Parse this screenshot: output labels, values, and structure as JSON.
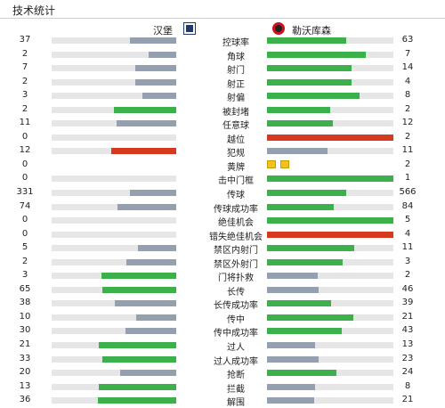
{
  "header": {
    "title": "技术统计"
  },
  "teams": {
    "home": "汉堡",
    "away": "勒沃库森"
  },
  "icons": {
    "home_logo": "hamburg-badge-icon",
    "away_logo": "leverkusen-badge-icon",
    "card": "yellow-card-icon"
  },
  "colors": {
    "win": "#3cb04a",
    "lose": "#94a0b0",
    "alert": "#d63a1e",
    "track": "#e6e6e6"
  },
  "stats": [
    {
      "label": "控球率",
      "home": "37",
      "away": "63",
      "h": 0.37,
      "a": 0.63,
      "hc": "lose",
      "ac": "win"
    },
    {
      "label": "角球",
      "home": "2",
      "away": "7",
      "h": 0.22,
      "a": 0.78,
      "hc": "lose",
      "ac": "win"
    },
    {
      "label": "射门",
      "home": "7",
      "away": "14",
      "h": 0.33,
      "a": 0.67,
      "hc": "lose",
      "ac": "win"
    },
    {
      "label": "射正",
      "home": "2",
      "away": "4",
      "h": 0.33,
      "a": 0.67,
      "hc": "lose",
      "ac": "win"
    },
    {
      "label": "射偏",
      "home": "3",
      "away": "8",
      "h": 0.27,
      "a": 0.73,
      "hc": "lose",
      "ac": "win"
    },
    {
      "label": "被封堵",
      "home": "2",
      "away": "2",
      "h": 0.5,
      "a": 0.5,
      "hc": "win",
      "ac": "win"
    },
    {
      "label": "任意球",
      "home": "11",
      "away": "12",
      "h": 0.48,
      "a": 0.52,
      "hc": "lose",
      "ac": "win"
    },
    {
      "label": "越位",
      "home": "0",
      "away": "2",
      "h": 0,
      "a": 1,
      "hc": "lose",
      "ac": "alert"
    },
    {
      "label": "犯规",
      "home": "12",
      "away": "11",
      "h": 0.52,
      "a": 0.48,
      "hc": "alert",
      "ac": "lose"
    },
    {
      "label": "黄牌",
      "home": "0",
      "away": "2",
      "cards": 2
    },
    {
      "label": "击中门框",
      "home": "0",
      "away": "1",
      "h": 0,
      "a": 1,
      "hc": "lose",
      "ac": "win"
    },
    {
      "label": "传球",
      "home": "331",
      "away": "566",
      "h": 0.37,
      "a": 0.63,
      "hc": "lose",
      "ac": "win"
    },
    {
      "label": "传球成功率",
      "home": "74",
      "away": "84",
      "h": 0.47,
      "a": 0.53,
      "hc": "lose",
      "ac": "win"
    },
    {
      "label": "绝佳机会",
      "home": "0",
      "away": "5",
      "h": 0,
      "a": 1,
      "hc": "lose",
      "ac": "win"
    },
    {
      "label": "错失绝佳机会",
      "home": "0",
      "away": "4",
      "h": 0,
      "a": 1,
      "hc": "lose",
      "ac": "alert"
    },
    {
      "label": "禁区内射门",
      "home": "5",
      "away": "11",
      "h": 0.31,
      "a": 0.69,
      "hc": "lose",
      "ac": "win"
    },
    {
      "label": "禁区外射门",
      "home": "2",
      "away": "3",
      "h": 0.4,
      "a": 0.6,
      "hc": "lose",
      "ac": "win"
    },
    {
      "label": "门将扑救",
      "home": "3",
      "away": "2",
      "h": 0.6,
      "a": 0.4,
      "hc": "win",
      "ac": "lose"
    },
    {
      "label": "长传",
      "home": "65",
      "away": "46",
      "h": 0.59,
      "a": 0.41,
      "hc": "win",
      "ac": "lose"
    },
    {
      "label": "长传成功率",
      "home": "38",
      "away": "39",
      "h": 0.49,
      "a": 0.51,
      "hc": "lose",
      "ac": "win"
    },
    {
      "label": "传中",
      "home": "10",
      "away": "21",
      "h": 0.32,
      "a": 0.68,
      "hc": "lose",
      "ac": "win"
    },
    {
      "label": "传中成功率",
      "home": "30",
      "away": "43",
      "h": 0.41,
      "a": 0.59,
      "hc": "lose",
      "ac": "win"
    },
    {
      "label": "过人",
      "home": "21",
      "away": "13",
      "h": 0.62,
      "a": 0.38,
      "hc": "win",
      "ac": "lose"
    },
    {
      "label": "过人成功率",
      "home": "33",
      "away": "23",
      "h": 0.59,
      "a": 0.41,
      "hc": "win",
      "ac": "lose"
    },
    {
      "label": "抢断",
      "home": "20",
      "away": "24",
      "h": 0.45,
      "a": 0.55,
      "hc": "lose",
      "ac": "win"
    },
    {
      "label": "拦截",
      "home": "13",
      "away": "8",
      "h": 0.62,
      "a": 0.38,
      "hc": "win",
      "ac": "lose"
    },
    {
      "label": "解围",
      "home": "36",
      "away": "21",
      "h": 0.63,
      "a": 0.37,
      "hc": "win",
      "ac": "lose"
    }
  ]
}
